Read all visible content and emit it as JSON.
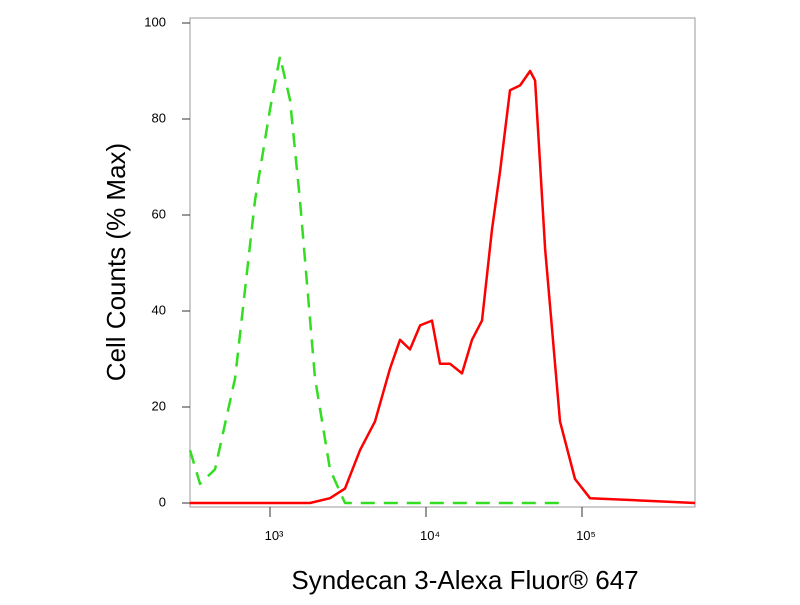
{
  "chart_data": {
    "type": "line",
    "xlabel": "Syndecan 3-Alexa Fluor® 647",
    "ylabel": "Cell Counts (% Max)",
    "xscale": "log",
    "xlim": [
      307,
      530000
    ],
    "ylim": [
      0,
      100
    ],
    "xticks": [
      {
        "value": 1000,
        "label": "10³"
      },
      {
        "value": 10000,
        "label": "10⁴"
      },
      {
        "value": 100000,
        "label": "10⁵"
      }
    ],
    "yticks": [
      0,
      20,
      40,
      60,
      80,
      100
    ],
    "grid": false,
    "series": [
      {
        "color": "#33dd22",
        "dash": "dashed",
        "x": [
          307,
          356,
          444,
          597,
          801,
          1000,
          1159,
          1343,
          1557,
          1942,
          2424,
          3025,
          72300
        ],
        "values": [
          11,
          4,
          7,
          26,
          63,
          82,
          93,
          84,
          63,
          26,
          7,
          0,
          0
        ]
      },
      {
        "color": "#ff0000",
        "dash": "solid",
        "x": [
          307,
          1804,
          2424,
          3025,
          3776,
          4710,
          5875,
          6810,
          7890,
          9160,
          10920,
          12300,
          14260,
          17020,
          19730,
          22860,
          26500,
          29790,
          34540,
          40080,
          46450,
          50000,
          57970,
          72300,
          90200,
          112500,
          530000
        ],
        "values": [
          0,
          0,
          1,
          3,
          11,
          17,
          28,
          34,
          32,
          37,
          38,
          29,
          29,
          27,
          34,
          38,
          57,
          69,
          86,
          87,
          90,
          88,
          53,
          17,
          5,
          1,
          0
        ]
      }
    ]
  }
}
